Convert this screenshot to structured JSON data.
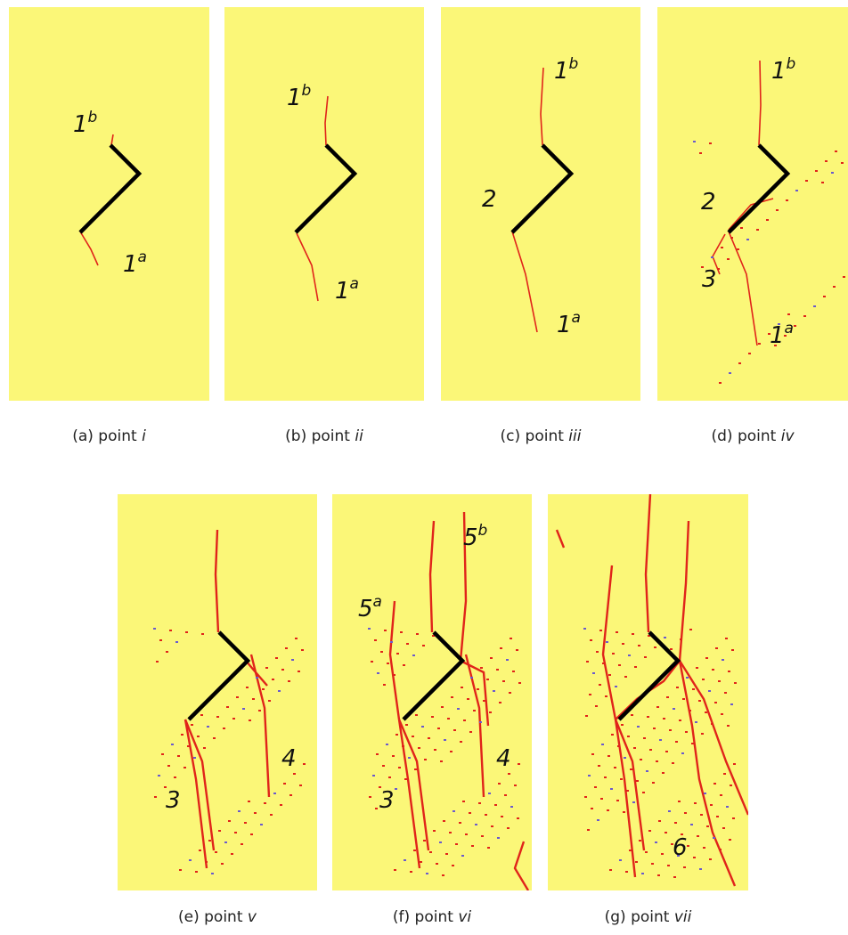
{
  "panels": [
    {
      "caption": "(a) point",
      "numeral": "i",
      "labels": [
        {
          "text": "1",
          "sup": "b"
        },
        {
          "text": "1",
          "sup": "a"
        }
      ]
    },
    {
      "caption": "(b) point",
      "numeral": "ii",
      "labels": [
        {
          "text": "1",
          "sup": "b"
        },
        {
          "text": "1",
          "sup": "a"
        }
      ]
    },
    {
      "caption": "(c) point",
      "numeral": "iii",
      "labels": [
        {
          "text": "1",
          "sup": "b"
        },
        {
          "text": "2"
        },
        {
          "text": "1",
          "sup": "a"
        }
      ]
    },
    {
      "caption": "(d) point",
      "numeral": "iv",
      "labels": [
        {
          "text": "1",
          "sup": "b"
        },
        {
          "text": "2"
        },
        {
          "text": "3"
        },
        {
          "text": "1",
          "sup": "a"
        }
      ]
    },
    {
      "caption": "(e) point",
      "numeral": "v",
      "labels": [
        {
          "text": "3"
        },
        {
          "text": "4"
        }
      ]
    },
    {
      "caption": "(f) point",
      "numeral": "vi",
      "labels": [
        {
          "text": "5",
          "sup": "b"
        },
        {
          "text": "5",
          "sup": "a"
        },
        {
          "text": "3"
        },
        {
          "text": "4"
        }
      ]
    },
    {
      "caption": "(g) point",
      "numeral": "vii",
      "labels": [
        {
          "text": "6"
        }
      ]
    }
  ]
}
